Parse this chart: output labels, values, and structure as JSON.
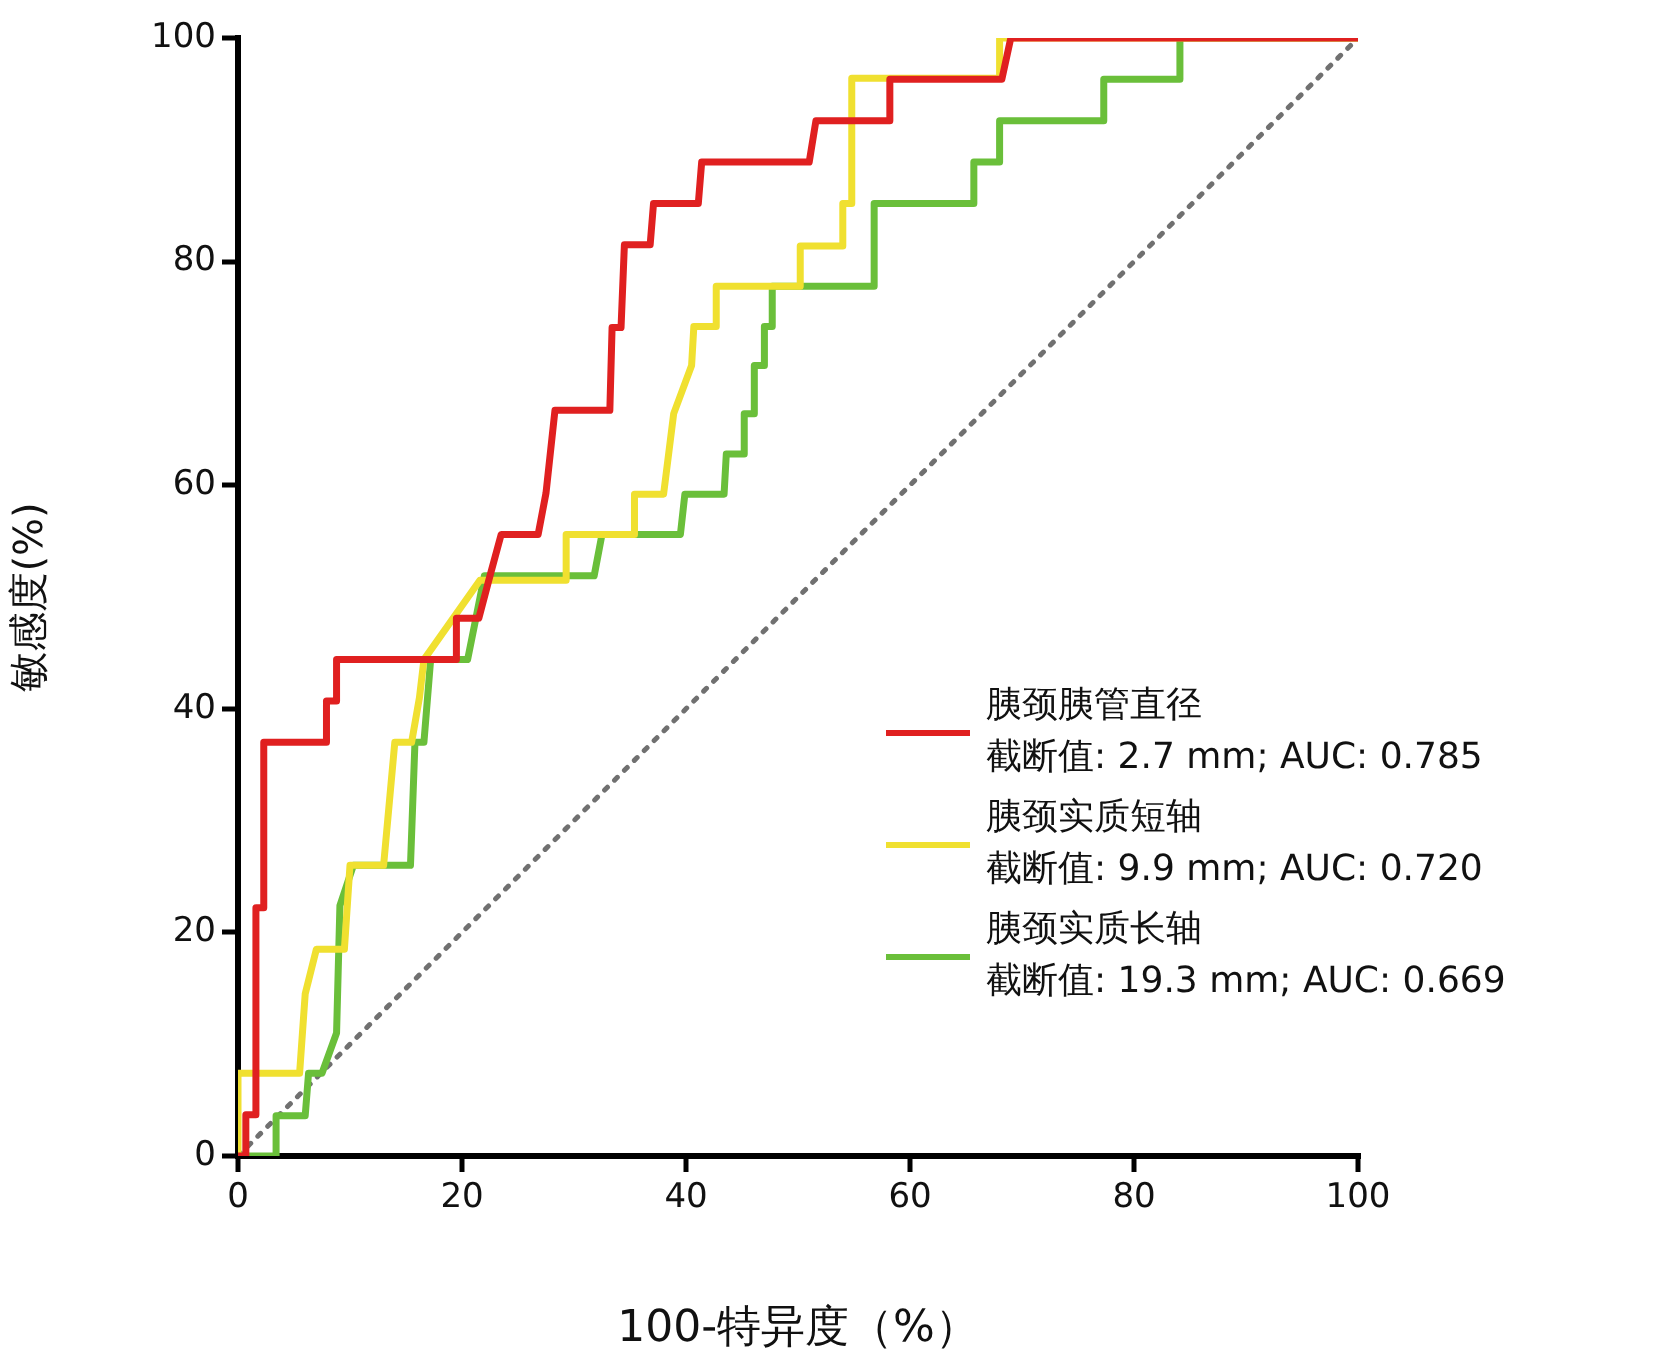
{
  "chart_data": {
    "type": "line",
    "xlabel": "100-特异度（%）",
    "ylabel": "敏感度(%)",
    "xlim": [
      0,
      100
    ],
    "ylim": [
      0,
      100
    ],
    "xticks": [
      0,
      20,
      40,
      60,
      80,
      100
    ],
    "yticks": [
      0,
      20,
      40,
      60,
      80,
      100
    ],
    "grid": false,
    "legend": "bottom right",
    "marker": "none",
    "series": [
      {
        "name": "胰颈胰管直径截断值: 2.7 mm; AUC: 0.785",
        "color": "#e02020",
        "x": [
          0,
          0.7,
          0.7,
          1.6,
          1.6,
          2.3,
          2.3,
          7.9,
          7.9,
          8.8,
          8.8,
          19.5,
          19.5,
          21.5,
          22.5,
          23.5,
          26.8,
          27.5,
          28.3,
          33.2,
          33.4,
          34.2,
          34.5,
          36.8,
          37.1,
          41.1,
          41.4,
          51,
          51.6,
          58.2,
          58.2,
          68.2,
          69,
          100
        ],
        "values": [
          0,
          0,
          3.7,
          3.7,
          22.2,
          22.2,
          37,
          37,
          40.7,
          40.7,
          44.4,
          44.4,
          48.1,
          48.1,
          51.9,
          55.6,
          55.6,
          59.3,
          66.7,
          66.7,
          74.1,
          74.1,
          81.5,
          81.5,
          85.2,
          85.2,
          88.9,
          88.9,
          92.6,
          92.6,
          96.3,
          96.3,
          100,
          100
        ]
      },
      {
        "name": "胰颈实质短轴截断值: 9.9 mm; AUC: 0.720",
        "color": "#f0e030",
        "x": [
          0,
          0,
          5.5,
          6,
          7,
          9.5,
          10,
          13,
          14,
          15.5,
          16.2,
          16.6,
          21.6,
          29.3,
          29.3,
          35.4,
          35.4,
          38,
          38.9,
          40.5,
          40.7,
          42.7,
          42.7,
          50.2,
          50.2,
          54,
          54,
          54.8,
          54.8,
          68,
          68,
          100
        ],
        "values": [
          0,
          7.4,
          7.4,
          14.5,
          18.5,
          18.5,
          26,
          26,
          37,
          37,
          41,
          44.4,
          51.5,
          51.5,
          55.6,
          55.6,
          59.2,
          59.2,
          66.4,
          70.7,
          74.2,
          74.2,
          77.8,
          77.8,
          81.4,
          81.4,
          85.2,
          85.2,
          96.4,
          96.4,
          100,
          100
        ]
      },
      {
        "name": "胰颈实质长轴截断值: 19.3 mm; AUC: 0.669",
        "color": "#6abf3a",
        "x": [
          0,
          3.4,
          3.4,
          6,
          6.3,
          7.5,
          8.8,
          9.1,
          10.3,
          15.4,
          15.8,
          16.6,
          17.2,
          20.5,
          22,
          31.8,
          32.5,
          39.5,
          39.9,
          43.4,
          43.6,
          45.2,
          45.2,
          46.1,
          46.1,
          47,
          47,
          47.7,
          47.7,
          56.8,
          56.8,
          65.7,
          65.7,
          68,
          68,
          77.3,
          77.3,
          84.1,
          84.1,
          100
        ],
        "values": [
          0,
          0,
          3.6,
          3.6,
          7.4,
          7.4,
          11,
          22.4,
          26,
          26,
          37,
          37,
          44.4,
          44.4,
          51.9,
          51.9,
          55.6,
          55.6,
          59.2,
          59.2,
          62.8,
          62.8,
          66.4,
          66.4,
          70.7,
          70.7,
          74.2,
          74.2,
          77.8,
          77.8,
          85.2,
          85.2,
          88.9,
          88.9,
          92.6,
          92.6,
          96.3,
          96.3,
          100,
          100
        ]
      },
      {
        "color": "#707070",
        "x": [
          0,
          100
        ],
        "values": [
          0,
          100
        ],
        "line_style": "dotted"
      }
    ]
  }
}
